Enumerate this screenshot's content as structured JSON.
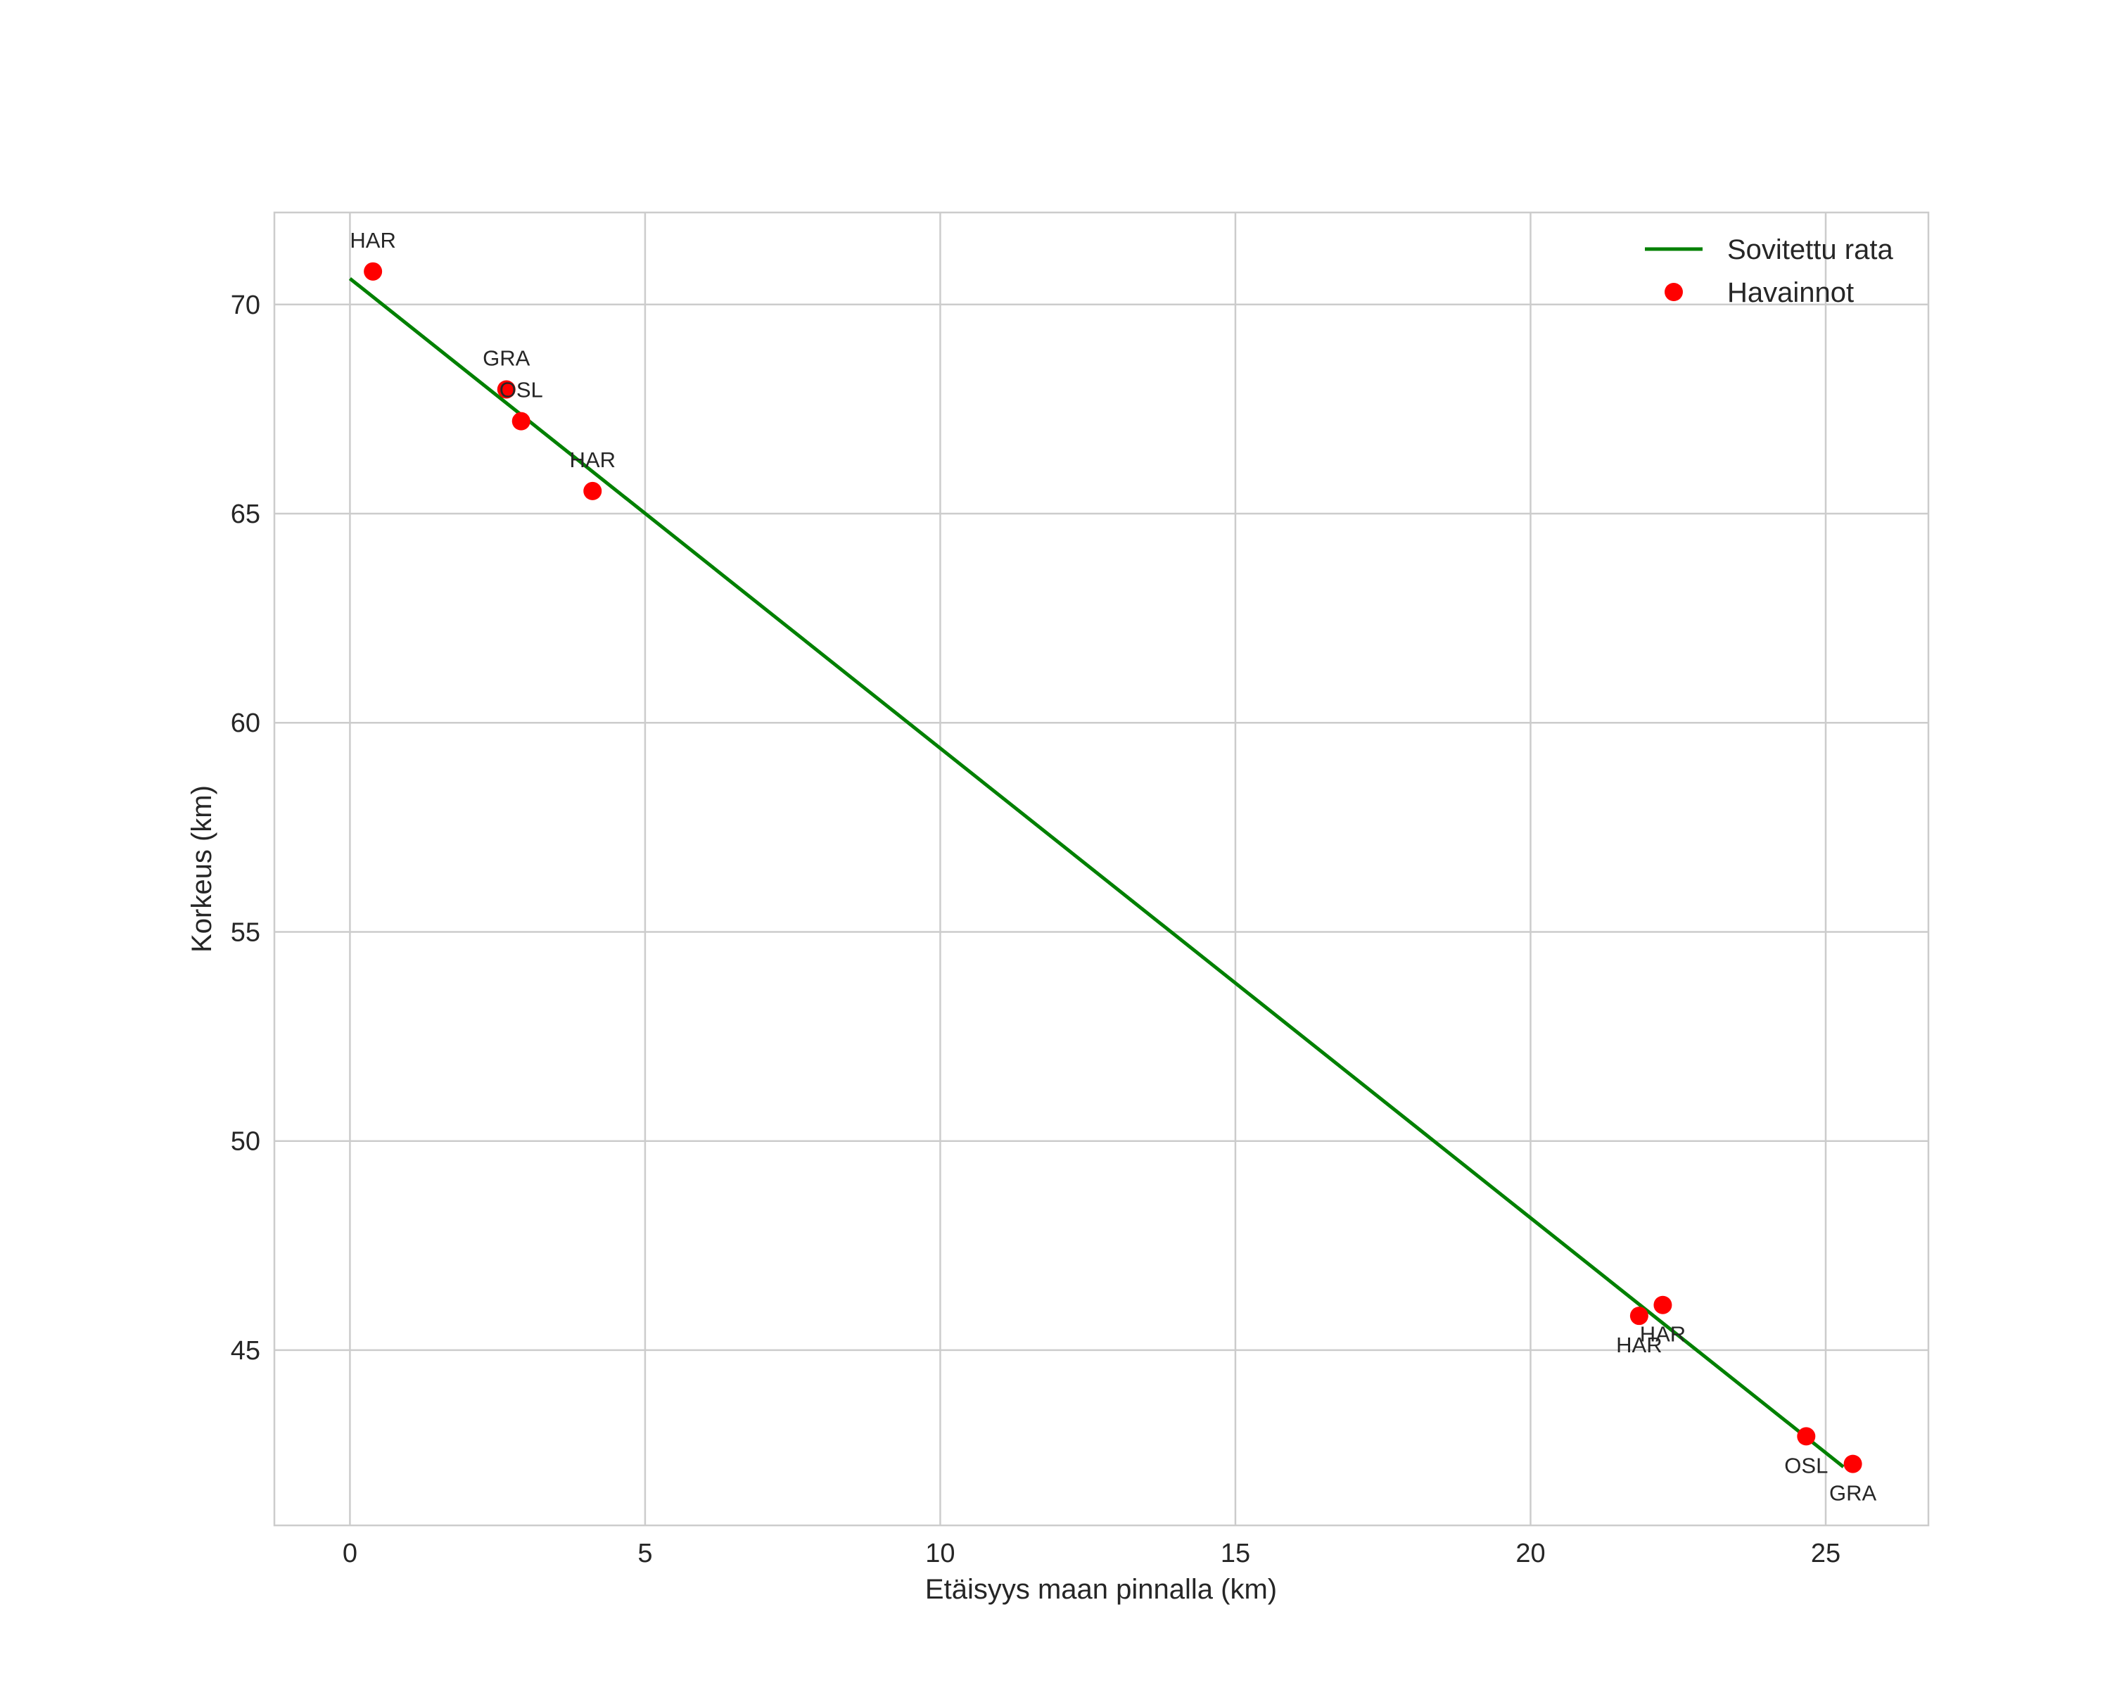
{
  "chart_data": {
    "type": "scatter",
    "title": "",
    "xlabel": "Etäisyys maan pinnalla (km)",
    "ylabel": "Korkeus (km)",
    "xlim": [
      -1.28,
      26.74
    ],
    "ylim": [
      40.81,
      72.2
    ],
    "xticks": [
      0,
      5,
      10,
      15,
      20,
      25
    ],
    "yticks": [
      45,
      50,
      55,
      60,
      65,
      70
    ],
    "grid": true,
    "legend_position": "top-right",
    "series": [
      {
        "name": "Sovitettu rata",
        "type": "line",
        "color": "#008000",
        "x": [
          0,
          25.3
        ],
        "y": [
          70.62,
          42.21
        ]
      },
      {
        "name": "Havainnot",
        "type": "scatter",
        "color": "#ff0000",
        "points": [
          {
            "x": 0.39,
            "y": 70.79,
            "label": "HAR",
            "label_pos": "above"
          },
          {
            "x": 2.65,
            "y": 67.97,
            "label": "GRA",
            "label_pos": "above"
          },
          {
            "x": 2.9,
            "y": 67.21,
            "label": "OSL",
            "label_pos": "above"
          },
          {
            "x": 4.11,
            "y": 65.54,
            "label": "HAR",
            "label_pos": "above"
          },
          {
            "x": 21.84,
            "y": 45.82,
            "label": "HAR",
            "label_pos": "below"
          },
          {
            "x": 22.24,
            "y": 46.08,
            "label": "HAR",
            "label_pos": "below"
          },
          {
            "x": 24.67,
            "y": 42.94,
            "label": "OSL",
            "label_pos": "below"
          },
          {
            "x": 25.46,
            "y": 42.28,
            "label": "GRA",
            "label_pos": "below"
          }
        ]
      }
    ]
  }
}
